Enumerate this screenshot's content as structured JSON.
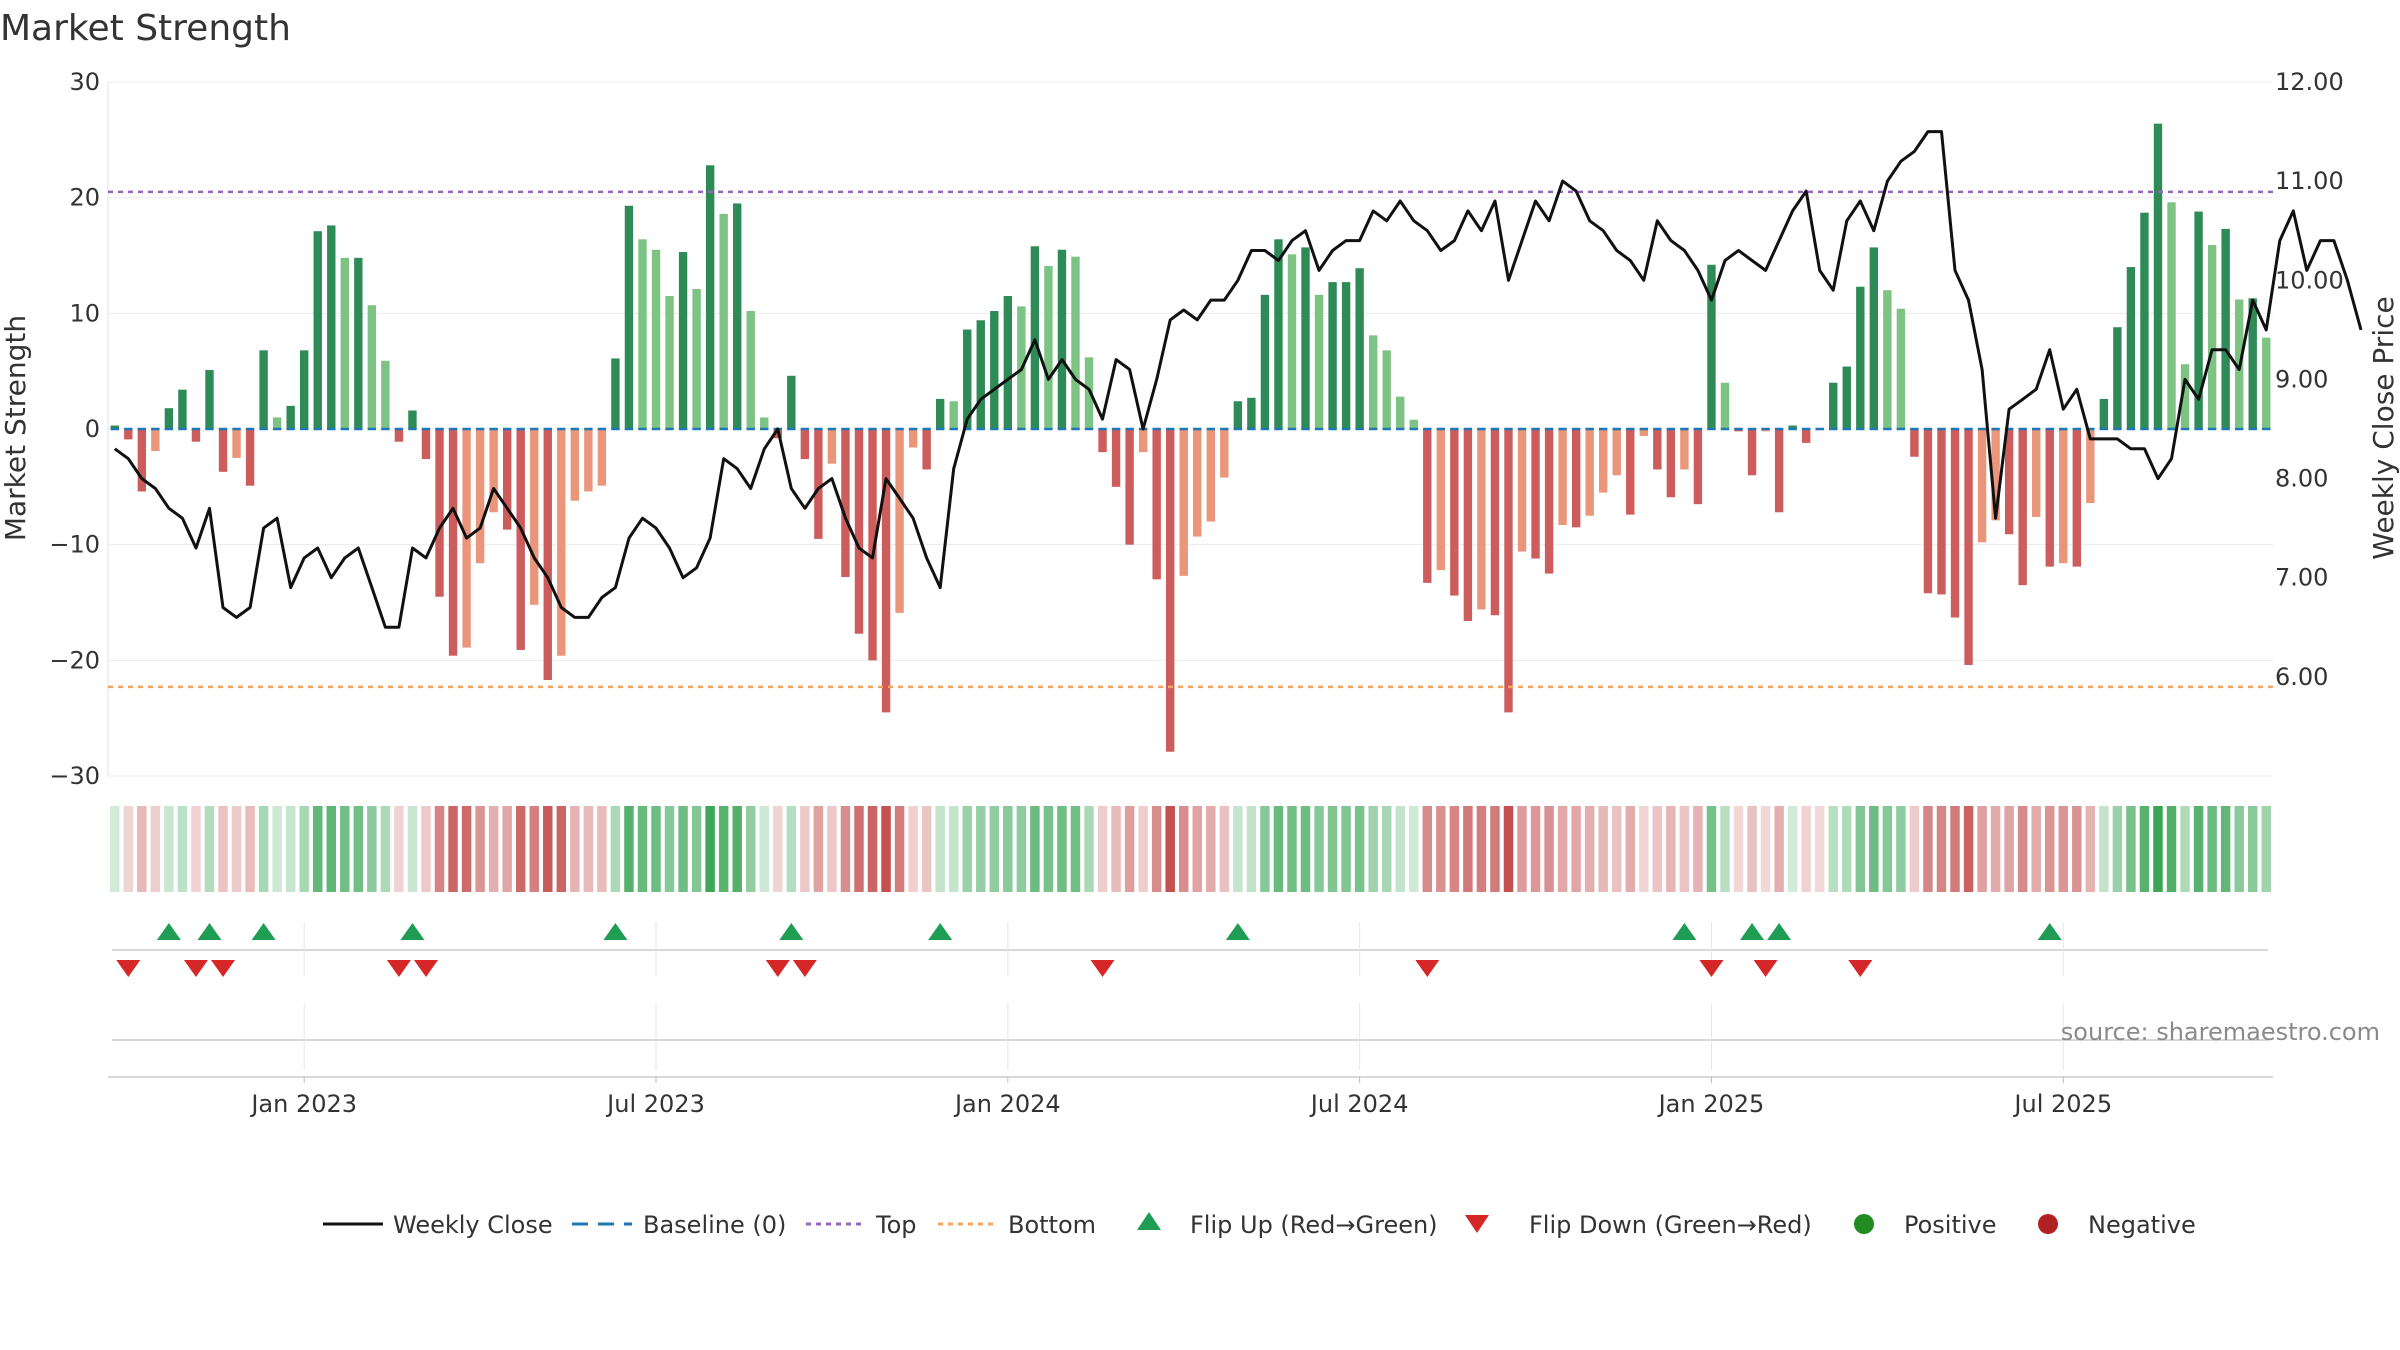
{
  "chart_data": {
    "type": "bar",
    "title": "Market Strength",
    "ylabel": "Market Strength",
    "y2label": "Weekly Close Price",
    "ylim": [
      -30,
      30
    ],
    "y2lim": [
      5.0,
      12.0
    ],
    "yticks": [
      -30,
      -20,
      -10,
      0,
      10,
      20,
      30
    ],
    "ytick_labels": [
      "−30",
      "−20",
      "−10",
      "0",
      "10",
      "20",
      "30"
    ],
    "y2ticks": [
      6,
      7,
      8,
      9,
      10,
      11,
      12
    ],
    "y2tick_labels": [
      "6.00",
      "7.00",
      "8.00",
      "9.00",
      "10.00",
      "11.00",
      "12.00"
    ],
    "xtick_labels": [
      "Jan 2023",
      "Jul 2023",
      "Jan 2024",
      "Jul 2024",
      "Jan 2025",
      "Jul 2025"
    ],
    "xtick_week_index": [
      14,
      40,
      66,
      92,
      118,
      144
    ],
    "top_level": 20.5,
    "bottom_level": -22.3,
    "baseline": 0,
    "market_strength": [
      0.3,
      -0.9,
      -5.4,
      -1.9,
      1.8,
      3.4,
      -1.1,
      5.1,
      -3.7,
      -2.5,
      -4.9,
      6.8,
      1.0,
      2.0,
      6.8,
      17.1,
      17.6,
      14.8,
      14.8,
      10.7,
      5.9,
      -1.1,
      1.6,
      -2.6,
      -14.5,
      -19.6,
      -18.9,
      -11.6,
      -7.2,
      -8.7,
      -19.1,
      -15.2,
      -21.7,
      -19.6,
      -6.2,
      -5.4,
      -4.9,
      6.1,
      19.3,
      16.4,
      15.5,
      11.5,
      15.3,
      12.1,
      22.8,
      18.6,
      19.5,
      10.2,
      1.0,
      -0.8,
      4.6,
      -2.6,
      -9.5,
      -3.0,
      -12.8,
      -17.7,
      -20.0,
      -24.5,
      -15.9,
      -1.6,
      -3.5,
      2.6,
      2.4,
      8.6,
      9.4,
      10.2,
      11.5,
      10.6,
      15.8,
      14.1,
      15.5,
      14.9,
      6.2,
      -2.0,
      -5.0,
      -10.0,
      -2.0,
      -13.0,
      -27.9,
      -12.7,
      -9.3,
      -8.0,
      -4.2,
      2.4,
      2.7,
      11.6,
      16.4,
      15.1,
      15.7,
      11.6,
      12.7,
      12.7,
      13.9,
      8.1,
      6.8,
      2.8,
      0.8,
      -13.3,
      -12.2,
      -14.4,
      -16.6,
      -15.6,
      -16.1,
      -24.5,
      -10.6,
      -11.2,
      -12.5,
      -8.3,
      -8.5,
      -7.5,
      -5.5,
      -4.0,
      -7.4,
      -0.6,
      -3.5,
      -5.9,
      -3.5,
      -6.5,
      14.2,
      4.0,
      -0.2,
      -4.0,
      -0.2,
      -7.2,
      0.3,
      -1.2,
      -0.1,
      4.0,
      5.4,
      12.3,
      15.7,
      12.0,
      10.4,
      -2.4,
      -14.2,
      -14.3,
      -16.3,
      -20.4,
      -9.8,
      -7.9,
      -9.1,
      -13.5,
      -7.6,
      -11.9,
      -11.6,
      -11.9,
      -6.4,
      2.6,
      8.8,
      14.0,
      18.7,
      26.4,
      19.6,
      5.6,
      18.8,
      15.9,
      17.3,
      11.2,
      11.3,
      7.9
    ],
    "weekly_close": [
      8.3,
      8.2,
      8.0,
      7.9,
      7.7,
      7.6,
      7.3,
      7.7,
      6.7,
      6.6,
      6.7,
      7.5,
      7.6,
      6.9,
      7.2,
      7.3,
      7.0,
      7.2,
      7.3,
      6.9,
      6.5,
      6.5,
      7.3,
      7.2,
      7.5,
      7.7,
      7.4,
      7.5,
      7.9,
      7.7,
      7.5,
      7.2,
      7.0,
      6.7,
      6.6,
      6.6,
      6.8,
      6.9,
      7.4,
      7.6,
      7.5,
      7.3,
      7.0,
      7.1,
      7.4,
      8.2,
      8.1,
      7.9,
      8.3,
      8.5,
      7.9,
      7.7,
      7.9,
      8.0,
      7.6,
      7.3,
      7.2,
      8.0,
      7.8,
      7.6,
      7.2,
      6.9,
      8.1,
      8.6,
      8.8,
      8.9,
      9.0,
      9.1,
      9.4,
      9.0,
      9.2,
      9.0,
      8.9,
      8.6,
      9.2,
      9.1,
      8.5,
      9.0,
      9.6,
      9.7,
      9.6,
      9.8,
      9.8,
      10.0,
      10.3,
      10.3,
      10.2,
      10.4,
      10.5,
      10.1,
      10.3,
      10.4,
      10.4,
      10.7,
      10.6,
      10.8,
      10.6,
      10.5,
      10.3,
      10.4,
      10.7,
      10.5,
      10.8,
      10.0,
      10.4,
      10.8,
      10.6,
      11.0,
      10.9,
      10.6,
      10.5,
      10.3,
      10.2,
      10.0,
      10.6,
      10.4,
      10.3,
      10.1,
      9.8,
      10.2,
      10.3,
      10.2,
      10.1,
      10.4,
      10.7,
      10.9,
      10.1,
      9.9,
      10.6,
      10.8,
      10.5,
      11.0,
      11.2,
      11.3,
      11.5,
      11.5,
      10.1,
      9.8,
      9.1,
      7.6,
      8.7,
      8.8,
      8.9,
      9.3,
      8.7,
      8.9,
      8.4,
      8.4,
      8.4,
      8.3,
      8.3,
      8.0,
      8.2,
      9.0,
      8.8,
      9.3,
      9.3,
      9.1,
      9.8,
      9.5,
      10.4,
      10.7,
      10.1,
      10.4,
      10.4,
      10.0,
      9.5
    ],
    "flip_up_weeks": [
      4,
      7,
      11,
      22,
      37,
      50,
      61,
      83,
      116,
      121,
      123,
      143
    ],
    "flip_down_weeks": [
      1,
      6,
      8,
      21,
      23,
      49,
      51,
      73,
      97,
      118,
      122,
      129
    ]
  },
  "legend": {
    "weekly_close": "Weekly Close",
    "baseline": "Baseline (0)",
    "top": "Top",
    "bottom": "Bottom",
    "flip_up": "Flip Up (Red→Green)",
    "flip_down": "Flip Down (Green→Red)",
    "positive": "Positive",
    "negative": "Negative"
  },
  "source_text": "source: sharemaestro.com",
  "colors": {
    "pos_strong": "#2e8b57",
    "pos_light": "#7dc383",
    "neg_strong": "#cd5c5c",
    "neg_light": "#e9967a",
    "line": "#111111",
    "top_line": "#9467bd",
    "bottom_line": "#f4a460",
    "baseline": "#1f77b4",
    "flip_up": "#1f9d55",
    "flip_down": "#d62728",
    "positive_dot": "#228b22",
    "negative_dot": "#b22222"
  }
}
